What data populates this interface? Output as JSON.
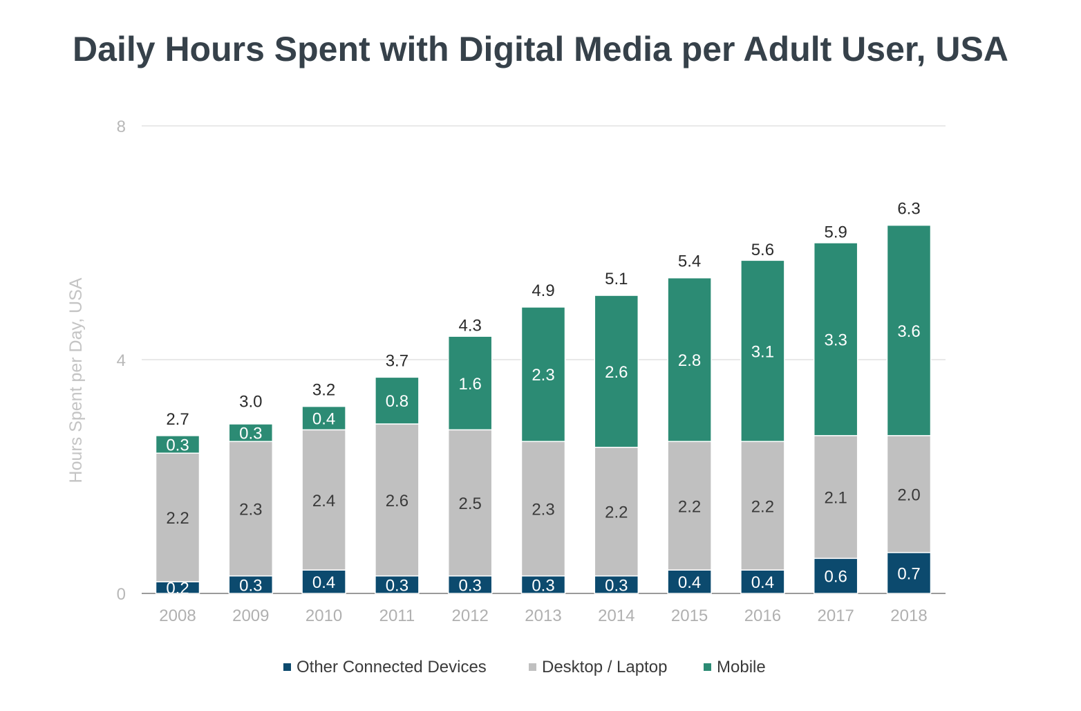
{
  "chart_data": {
    "type": "bar",
    "stacked": true,
    "title": "Daily Hours Spent with Digital Media per Adult User, USA",
    "xlabel": "",
    "ylabel": "Hours Spent per Day, USA",
    "ylim": [
      0,
      8
    ],
    "yticks": [
      "0",
      "4",
      "8"
    ],
    "grid": true,
    "legend_position": "bottom",
    "categories": [
      "2008",
      "2009",
      "2010",
      "2011",
      "2012",
      "2013",
      "2014",
      "2015",
      "2016",
      "2017",
      "2018"
    ],
    "series": [
      {
        "name": "Other Connected Devices",
        "color": "#0c4a6e",
        "label_color": "#ffffff",
        "values": [
          0.2,
          0.3,
          0.4,
          0.3,
          0.3,
          0.3,
          0.3,
          0.4,
          0.4,
          0.6,
          0.7
        ],
        "labels": [
          "0.2",
          "0.3",
          "0.4",
          "0.3",
          "0.3",
          "0.3",
          "0.3",
          "0.4",
          "0.4",
          "0.6",
          "0.7"
        ]
      },
      {
        "name": "Desktop / Laptop",
        "color": "#c0c0c0",
        "label_color": "#3a3a3a",
        "values": [
          2.2,
          2.3,
          2.4,
          2.6,
          2.5,
          2.3,
          2.2,
          2.2,
          2.2,
          2.1,
          2.0
        ],
        "labels": [
          "2.2",
          "2.3",
          "2.4",
          "2.6",
          "2.5",
          "2.3",
          "2.2",
          "2.2",
          "2.2",
          "2.1",
          "2.0"
        ]
      },
      {
        "name": "Mobile",
        "color": "#2c8b74",
        "label_color": "#ffffff",
        "values": [
          0.3,
          0.3,
          0.4,
          0.8,
          1.6,
          2.3,
          2.6,
          2.8,
          3.1,
          3.3,
          3.6
        ],
        "labels": [
          "0.3",
          "0.3",
          "0.4",
          "0.8",
          "1.6",
          "2.3",
          "2.6",
          "2.8",
          "3.1",
          "3.3",
          "3.6"
        ]
      }
    ],
    "totals": [
      2.7,
      3.0,
      3.2,
      3.7,
      4.3,
      4.9,
      5.1,
      5.4,
      5.6,
      5.9,
      6.3
    ],
    "total_labels": [
      "2.7",
      "3.0",
      "3.2",
      "3.7",
      "4.3",
      "4.9",
      "5.1",
      "5.4",
      "5.6",
      "5.9",
      "6.3"
    ]
  }
}
